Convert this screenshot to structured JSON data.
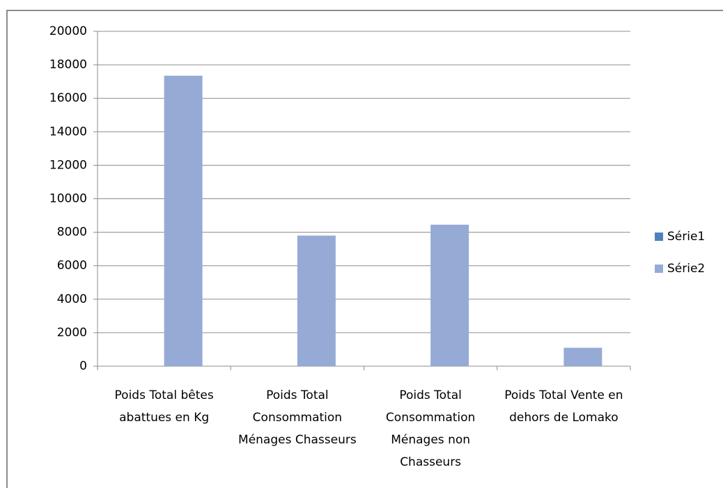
{
  "chart_data": {
    "type": "bar",
    "categories": [
      "Poids Total bêtes abattues en Kg",
      "Poids Total Consommation Ménages Chasseurs",
      "Poids Total Consommation Ménages non Chasseurs",
      "Poids Total Vente en dehors de Lomako"
    ],
    "series": [
      {
        "name": "Série1",
        "color": "#4f81bd",
        "values": [
          0,
          0,
          0,
          0
        ]
      },
      {
        "name": "Série2",
        "color": "#95abd5",
        "values": [
          17350,
          7800,
          8450,
          1100
        ]
      }
    ],
    "ylim": [
      0,
      20000
    ],
    "yticks": [
      0,
      2000,
      4000,
      6000,
      8000,
      10000,
      12000,
      14000,
      16000,
      18000,
      20000
    ],
    "grid": true,
    "legend": "right"
  }
}
